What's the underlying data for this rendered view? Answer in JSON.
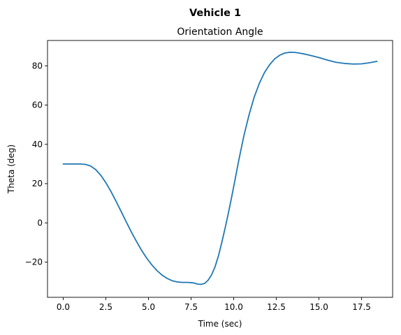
{
  "figure": {
    "suptitle": "Vehicle 1"
  },
  "chart_data": {
    "type": "line",
    "title": "Orientation Angle",
    "xlabel": "Time (sec)",
    "ylabel": "Theta (deg)",
    "xlim": [
      -0.92,
      19.32
    ],
    "ylim": [
      -37.9,
      92.9
    ],
    "xticks": [
      0.0,
      2.5,
      5.0,
      7.5,
      10.0,
      12.5,
      15.0,
      17.5
    ],
    "xtick_labels": [
      "0.0",
      "2.5",
      "5.0",
      "7.5",
      "10.0",
      "12.5",
      "15.0",
      "17.5"
    ],
    "yticks": [
      -20,
      0,
      20,
      40,
      60,
      80
    ],
    "ytick_labels": [
      "−20",
      "0",
      "20",
      "40",
      "60",
      "80"
    ],
    "grid": false,
    "series": [
      {
        "color": "#1f77b4",
        "x": [
          0.0,
          0.5,
          1.0,
          1.3,
          1.6,
          1.9,
          2.2,
          2.5,
          2.8,
          3.1,
          3.4,
          3.7,
          4.0,
          4.3,
          4.6,
          4.9,
          5.2,
          5.5,
          5.8,
          6.1,
          6.4,
          6.7,
          7.0,
          7.3,
          7.6,
          7.9,
          8.1,
          8.3,
          8.5,
          8.7,
          8.9,
          9.1,
          9.3,
          9.5,
          9.7,
          9.9,
          10.1,
          10.3,
          10.6,
          10.9,
          11.2,
          11.5,
          11.8,
          12.1,
          12.4,
          12.7,
          13.0,
          13.3,
          13.6,
          13.9,
          14.2,
          14.5,
          15.0,
          15.5,
          16.0,
          16.5,
          17.0,
          17.5,
          18.0,
          18.4
        ],
        "y": [
          30.0,
          30.0,
          30.0,
          29.8,
          29.0,
          27.2,
          24.3,
          20.5,
          16.0,
          11.0,
          5.8,
          0.5,
          -4.7,
          -9.5,
          -14.0,
          -18.0,
          -21.4,
          -24.3,
          -26.6,
          -28.3,
          -29.5,
          -30.1,
          -30.3,
          -30.3,
          -30.5,
          -31.2,
          -31.3,
          -30.8,
          -29.2,
          -26.5,
          -22.5,
          -17.0,
          -10.0,
          -2.5,
          5.5,
          14.0,
          23.0,
          32.0,
          44.5,
          55.0,
          64.0,
          71.0,
          76.5,
          80.5,
          83.5,
          85.4,
          86.5,
          86.9,
          86.8,
          86.4,
          85.9,
          85.3,
          84.2,
          82.9,
          81.8,
          81.2,
          80.9,
          81.0,
          81.6,
          82.3
        ]
      }
    ]
  }
}
